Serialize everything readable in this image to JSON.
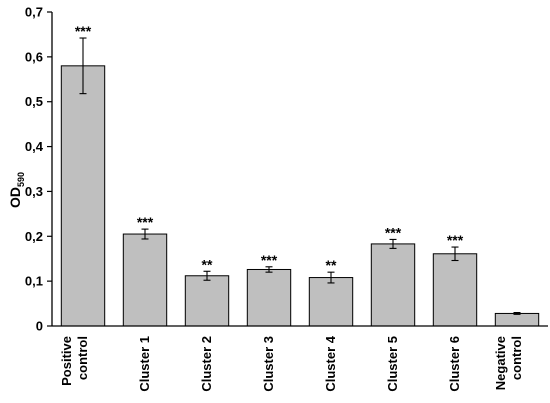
{
  "chart_data": {
    "type": "bar",
    "ylabel": "OD",
    "ylabel_subscript": "590",
    "ylim": [
      0,
      0.7
    ],
    "yticks": [
      0,
      0.1,
      0.2,
      0.3,
      0.4,
      0.5,
      0.6,
      0.7
    ],
    "ytick_labels": [
      "0",
      "0,1",
      "0,2",
      "0,3",
      "0,4",
      "0,5",
      "0,6",
      "0,7"
    ],
    "grid": false,
    "bar_color": "#bfbfbf",
    "categories": [
      [
        "Positive",
        "control"
      ],
      [
        "Cluster 1"
      ],
      [
        "Cluster 2"
      ],
      [
        "Cluster 3"
      ],
      [
        "Cluster 4"
      ],
      [
        "Cluster 5"
      ],
      [
        "Cluster 6"
      ],
      [
        "Negative",
        "control"
      ]
    ],
    "values": [
      0.58,
      0.205,
      0.112,
      0.126,
      0.108,
      0.183,
      0.161,
      0.028
    ],
    "errors": [
      0.062,
      0.011,
      0.01,
      0.006,
      0.012,
      0.01,
      0.015,
      0.002
    ],
    "significance": [
      "***",
      "***",
      "**",
      "***",
      "**",
      "***",
      "***",
      ""
    ]
  }
}
